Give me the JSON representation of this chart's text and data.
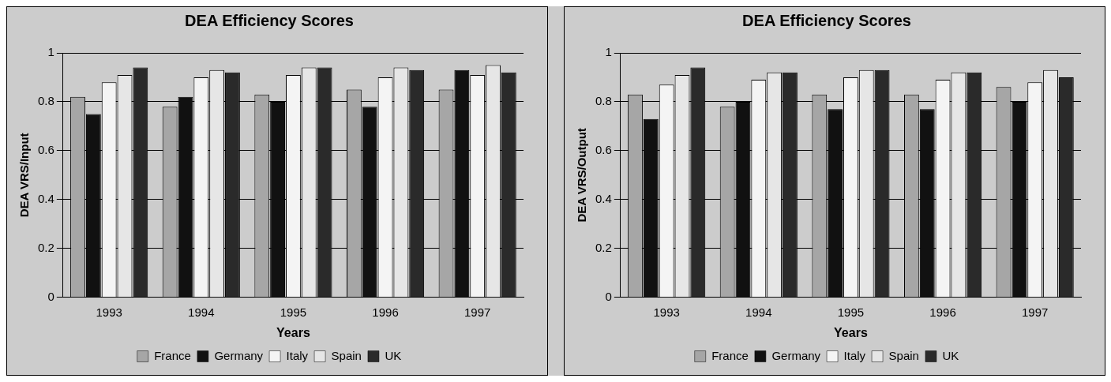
{
  "chart_data": [
    {
      "type": "bar",
      "title": "DEA Efficiency Scores",
      "xlabel": "Years",
      "ylabel": "DEA VRS/Input",
      "categories": [
        "1993",
        "1994",
        "1995",
        "1996",
        "1997"
      ],
      "series": [
        {
          "name": "France",
          "color": "#a6a6a6",
          "values": [
            0.82,
            0.78,
            0.83,
            0.85,
            0.85
          ]
        },
        {
          "name": "Germany",
          "color": "#111111",
          "values": [
            0.75,
            0.82,
            0.8,
            0.78,
            0.93
          ]
        },
        {
          "name": "Italy",
          "color": "#f4f4f4",
          "values": [
            0.88,
            0.9,
            0.91,
            0.9,
            0.91
          ]
        },
        {
          "name": "Spain",
          "color": "#e6e6e6",
          "values": [
            0.91,
            0.93,
            0.94,
            0.94,
            0.95
          ]
        },
        {
          "name": "UK",
          "color": "#2a2a2a",
          "values": [
            0.94,
            0.92,
            0.94,
            0.93,
            0.92
          ]
        }
      ],
      "ylim": [
        0,
        1
      ],
      "yticks": [
        0,
        0.2,
        0.4,
        0.6,
        0.8,
        1
      ],
      "grid": "y",
      "legend": "bottom"
    },
    {
      "type": "bar",
      "title": "DEA Efficiency Scores",
      "xlabel": "Years",
      "ylabel": "DEA VRS/Output",
      "categories": [
        "1993",
        "1994",
        "1995",
        "1996",
        "1997"
      ],
      "series": [
        {
          "name": "France",
          "color": "#a6a6a6",
          "values": [
            0.83,
            0.78,
            0.83,
            0.83,
            0.86
          ]
        },
        {
          "name": "Germany",
          "color": "#111111",
          "values": [
            0.73,
            0.8,
            0.77,
            0.77,
            0.8
          ]
        },
        {
          "name": "Italy",
          "color": "#f4f4f4",
          "values": [
            0.87,
            0.89,
            0.9,
            0.89,
            0.88
          ]
        },
        {
          "name": "Spain",
          "color": "#e6e6e6",
          "values": [
            0.91,
            0.92,
            0.93,
            0.92,
            0.93
          ]
        },
        {
          "name": "UK",
          "color": "#2a2a2a",
          "values": [
            0.94,
            0.92,
            0.93,
            0.92,
            0.9
          ]
        }
      ],
      "ylim": [
        0,
        1
      ],
      "yticks": [
        0,
        0.2,
        0.4,
        0.6,
        0.8,
        1
      ],
      "grid": "y",
      "legend": "bottom"
    }
  ]
}
